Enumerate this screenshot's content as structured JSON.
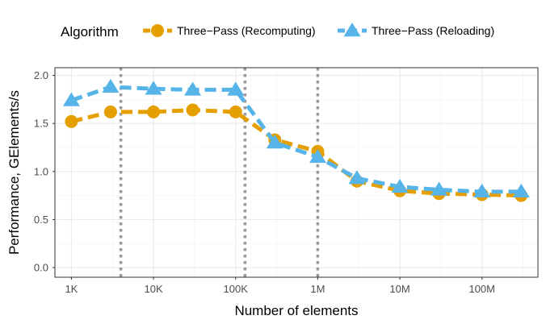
{
  "chart_data": {
    "type": "line",
    "xlabel": "Number of elements",
    "ylabel": "Performance, GElements/s",
    "x_scale": "log10",
    "xlim": [
      630,
      480000000
    ],
    "ylim": [
      -0.1,
      2.08
    ],
    "x_ticks": [
      {
        "value": 1000,
        "label": "1K"
      },
      {
        "value": 10000,
        "label": "10K"
      },
      {
        "value": 100000,
        "label": "100K"
      },
      {
        "value": 1000000,
        "label": "1M"
      },
      {
        "value": 10000000,
        "label": "10M"
      },
      {
        "value": 100000000,
        "label": "100M"
      }
    ],
    "y_ticks": [
      {
        "value": 0,
        "label": "0.0"
      },
      {
        "value": 0.5,
        "label": "0.5"
      },
      {
        "value": 1,
        "label": "1.0"
      },
      {
        "value": 1.5,
        "label": "1.5"
      },
      {
        "value": 2,
        "label": "2.0"
      }
    ],
    "grid": true,
    "vlines": [
      4000,
      130000,
      1000000
    ],
    "legend": {
      "title": "Algorithm",
      "placement": "top"
    },
    "series": [
      {
        "name": "Three−Pass (Recomputing)",
        "color": "#E69F00",
        "marker": "circle",
        "x": [
          1000,
          3000,
          10000,
          30000,
          100000,
          300000,
          1000000,
          3000000,
          10000000,
          30000000,
          100000000,
          300000000
        ],
        "y": [
          1.52,
          1.62,
          1.62,
          1.64,
          1.62,
          1.33,
          1.21,
          0.9,
          0.8,
          0.77,
          0.76,
          0.75
        ]
      },
      {
        "name": "Three−Pass (Reloading)",
        "color": "#56B4E9",
        "marker": "triangle",
        "x": [
          1000,
          3000,
          10000,
          30000,
          100000,
          300000,
          1000000,
          3000000,
          10000000,
          30000000,
          100000000,
          300000000
        ],
        "y": [
          1.74,
          1.88,
          1.86,
          1.85,
          1.85,
          1.3,
          1.15,
          0.93,
          0.84,
          0.81,
          0.79,
          0.79
        ]
      }
    ]
  }
}
